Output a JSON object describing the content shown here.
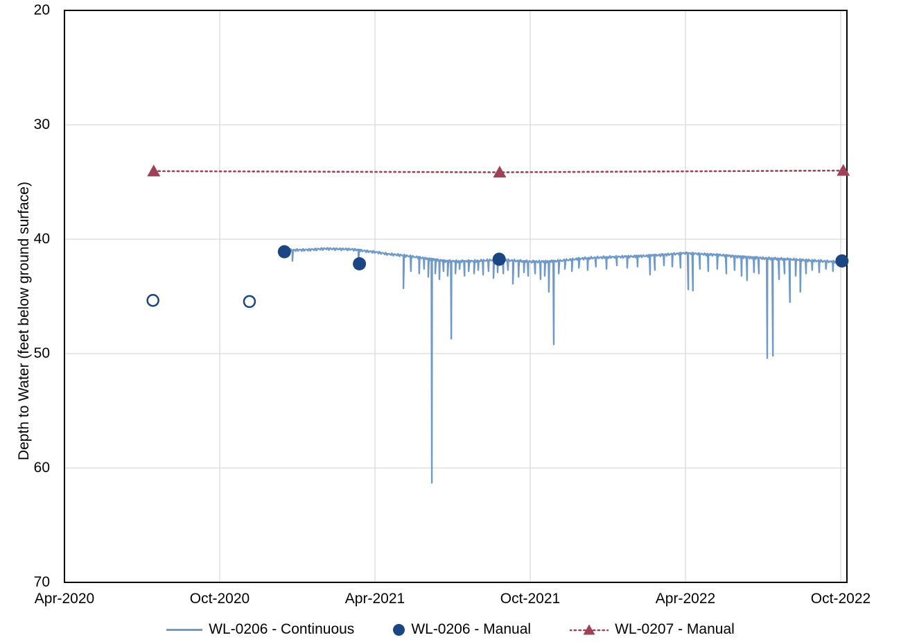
{
  "colors": {
    "continuous": "#6E99C9",
    "manual": "#1B4583",
    "wl0207": "#9E4257",
    "gridline": "#D9D9D9",
    "axis": "#000000",
    "text": "#000000",
    "background": "#FFFFFF"
  },
  "chart_data": {
    "type": "line",
    "title": "",
    "xlabel": "",
    "ylabel": "Depth to Water (feet below ground surface)",
    "grid": "both-light-gray",
    "legend_position": "bottom",
    "x_axis": {
      "unit": "months since Apr-2020",
      "start_label": "Apr-2020",
      "tick_labels": [
        "Apr-2020",
        "Oct-2020",
        "Apr-2021",
        "Oct-2021",
        "Apr-2022",
        "Oct-2022"
      ],
      "tick_month_offsets": [
        0,
        6,
        12,
        18,
        24,
        30
      ],
      "axis_max_month_offset": 30.24
    },
    "y_axis": {
      "min": 20,
      "max": 70,
      "inverted": true,
      "tick_labels": [
        "20",
        "30",
        "40",
        "50",
        "60",
        "70"
      ],
      "tick_values": [
        20,
        30,
        40,
        50,
        60,
        70
      ]
    },
    "series": [
      {
        "name": "WL-0206 - Continuous",
        "kind": "line",
        "marker": "none",
        "color_key": "continuous",
        "base_points": [
          [
            8.57,
            41.05
          ],
          [
            8.75,
            40.95
          ],
          [
            9.3,
            40.9
          ],
          [
            10.1,
            40.75
          ],
          [
            10.9,
            40.8
          ],
          [
            11.2,
            40.85
          ],
          [
            11.6,
            41.0
          ],
          [
            11.97,
            41.1
          ],
          [
            12.5,
            41.3
          ],
          [
            13.1,
            41.4
          ],
          [
            13.7,
            41.55
          ],
          [
            14.2,
            41.7
          ],
          [
            14.7,
            41.85
          ],
          [
            15.3,
            41.9
          ],
          [
            16.0,
            41.9
          ],
          [
            16.8,
            41.8
          ],
          [
            17.3,
            41.85
          ],
          [
            18.0,
            41.9
          ],
          [
            18.6,
            41.9
          ],
          [
            19.1,
            41.85
          ],
          [
            19.9,
            41.7
          ],
          [
            20.7,
            41.6
          ],
          [
            21.5,
            41.5
          ],
          [
            22.3,
            41.4
          ],
          [
            23.2,
            41.3
          ],
          [
            24.0,
            41.2
          ],
          [
            24.6,
            41.3
          ],
          [
            25.3,
            41.35
          ],
          [
            26.0,
            41.45
          ],
          [
            26.7,
            41.55
          ],
          [
            27.4,
            41.65
          ],
          [
            28.0,
            41.75
          ],
          [
            28.7,
            41.85
          ],
          [
            29.4,
            41.9
          ],
          [
            30.0,
            41.95
          ],
          [
            30.24,
            41.9
          ]
        ],
        "spike_points": [
          [
            8.81,
            41.9
          ],
          [
            11.36,
            42.2
          ],
          [
            13.1,
            44.3
          ],
          [
            13.39,
            42.8
          ],
          [
            13.71,
            43.0
          ],
          [
            13.9,
            42.6
          ],
          [
            14.06,
            43.3
          ],
          [
            14.2,
            61.3
          ],
          [
            14.33,
            43.0
          ],
          [
            14.49,
            43.5
          ],
          [
            14.65,
            42.8
          ],
          [
            14.81,
            43.2
          ],
          [
            14.95,
            48.7
          ],
          [
            15.11,
            43.0
          ],
          [
            15.27,
            42.6
          ],
          [
            15.46,
            43.2
          ],
          [
            15.62,
            42.8
          ],
          [
            15.83,
            43.0
          ],
          [
            15.99,
            42.7
          ],
          [
            16.18,
            43.1
          ],
          [
            16.39,
            42.8
          ],
          [
            16.58,
            43.4
          ],
          [
            16.74,
            42.9
          ],
          [
            16.96,
            43.0
          ],
          [
            17.14,
            42.7
          ],
          [
            17.33,
            43.9
          ],
          [
            17.55,
            43.3
          ],
          [
            17.76,
            42.9
          ],
          [
            17.92,
            43.2
          ],
          [
            18.19,
            43.0
          ],
          [
            18.4,
            43.5
          ],
          [
            18.56,
            43.2
          ],
          [
            18.72,
            44.6
          ],
          [
            18.91,
            49.2
          ],
          [
            19.1,
            43.0
          ],
          [
            19.34,
            42.6
          ],
          [
            19.61,
            42.8
          ],
          [
            19.88,
            42.5
          ],
          [
            20.22,
            42.7
          ],
          [
            20.54,
            42.4
          ],
          [
            20.95,
            42.6
          ],
          [
            21.35,
            42.3
          ],
          [
            21.75,
            42.5
          ],
          [
            22.15,
            42.4
          ],
          [
            22.63,
            43.1
          ],
          [
            22.82,
            42.7
          ],
          [
            23.17,
            42.3
          ],
          [
            23.49,
            42.4
          ],
          [
            23.81,
            42.5
          ],
          [
            24.11,
            44.4
          ],
          [
            24.29,
            44.5
          ],
          [
            24.56,
            42.6
          ],
          [
            24.88,
            42.8
          ],
          [
            25.23,
            42.6
          ],
          [
            25.58,
            43.0
          ],
          [
            25.9,
            42.7
          ],
          [
            26.17,
            43.2
          ],
          [
            26.38,
            43.6
          ],
          [
            26.65,
            42.9
          ],
          [
            26.84,
            43.0
          ],
          [
            27.16,
            50.4
          ],
          [
            27.38,
            50.2
          ],
          [
            27.62,
            43.5
          ],
          [
            27.83,
            43.0
          ],
          [
            28.04,
            45.5
          ],
          [
            28.26,
            43.2
          ],
          [
            28.44,
            44.6
          ],
          [
            28.66,
            43.0
          ],
          [
            28.9,
            42.7
          ],
          [
            29.17,
            42.9
          ],
          [
            29.43,
            42.6
          ],
          [
            29.7,
            42.8
          ],
          [
            30.0,
            42.4
          ]
        ]
      },
      {
        "name": "WL-0206 - Manual",
        "kind": "scatter",
        "marker": "circle",
        "color_key": "manual",
        "filled_points": [
          [
            8.5,
            41.1
          ],
          [
            11.4,
            42.15
          ],
          [
            16.8,
            41.75
          ],
          [
            30.05,
            41.9
          ]
        ],
        "open_points": [
          [
            3.42,
            45.35
          ],
          [
            7.15,
            45.45
          ]
        ]
      },
      {
        "name": "WL-0207 - Manual",
        "kind": "line+scatter",
        "marker": "triangle",
        "linestyle": "dotted",
        "color_key": "wl0207",
        "points": [
          [
            3.45,
            34.05
          ],
          [
            16.82,
            34.15
          ],
          [
            30.1,
            34.0
          ]
        ]
      }
    ],
    "legend": {
      "items": [
        {
          "label": "WL-0206 - Continuous",
          "swatch": "line"
        },
        {
          "label": "WL-0206 - Manual",
          "swatch": "filled-circle"
        },
        {
          "label": "WL-0207 - Manual",
          "swatch": "dotted-line-triangle"
        }
      ]
    }
  }
}
